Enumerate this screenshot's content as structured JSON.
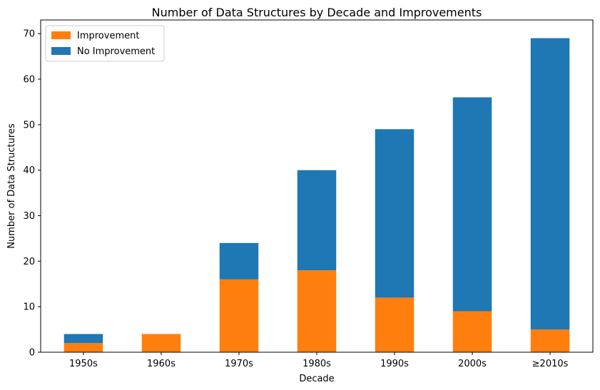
{
  "chart_data": {
    "type": "bar",
    "stacked": true,
    "title": "Number of Data Structures by Decade and Improvements",
    "xlabel": "Decade",
    "ylabel": "Number of Data Structures",
    "categories": [
      "1950s",
      "1960s",
      "1970s",
      "1980s",
      "1990s",
      "2000s",
      "≥2010s"
    ],
    "series": [
      {
        "name": "Improvement",
        "color": "#ff7f0e",
        "values": [
          2,
          4,
          16,
          18,
          12,
          9,
          5
        ]
      },
      {
        "name": "No Improvement",
        "color": "#1f77b4",
        "values": [
          2,
          0,
          8,
          22,
          37,
          47,
          64
        ]
      }
    ],
    "ylim": [
      0,
      73
    ],
    "yticks": [
      0,
      10,
      20,
      30,
      40,
      50,
      60,
      70
    ],
    "legend_position": "top-left",
    "grid": false
  }
}
